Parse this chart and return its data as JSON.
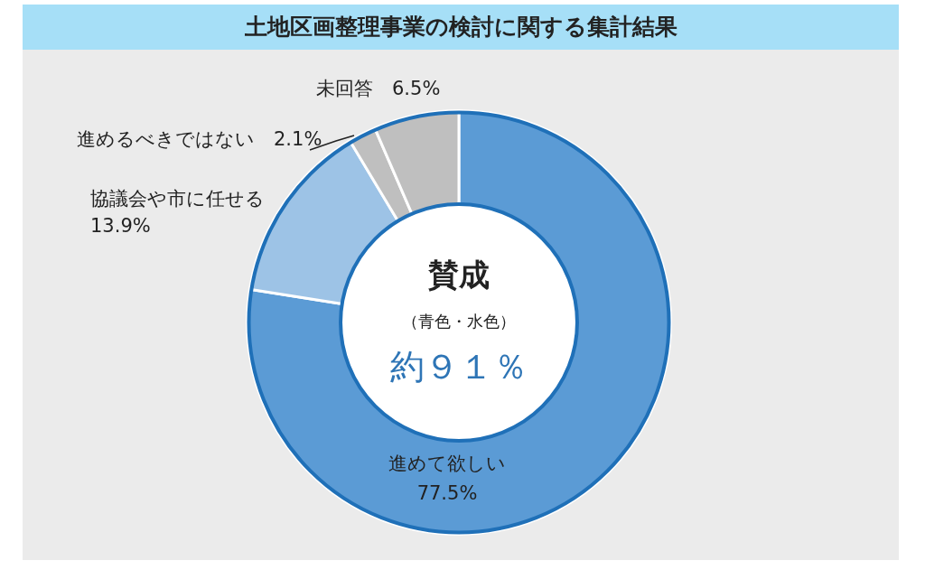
{
  "chart_data": {
    "type": "donut",
    "title": "土地区画整理事業の検討に関する集計結果",
    "categories": [
      "進めて欲しい",
      "協議会や市に任せる",
      "進めるべきではない",
      "未回答"
    ],
    "values": [
      77.5,
      13.9,
      2.1,
      6.5
    ],
    "colors": [
      "#5b9bd5",
      "#9dc3e6",
      "#bfbfbf",
      "#bfbfbf"
    ],
    "value_labels": [
      "77.5%",
      "13.9%",
      "2.1%",
      "6.5%"
    ],
    "annotations": [
      "賛成",
      "（青色・水色）",
      "約９１％"
    ],
    "legend": false
  }
}
